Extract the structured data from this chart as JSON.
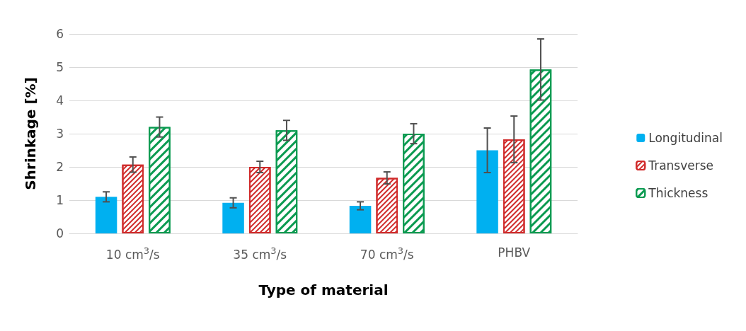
{
  "chart_data": {
    "type": "bar",
    "xlabel": "Type of material",
    "ylabel": "Shrinkage [%]",
    "categories": [
      "10 cm$^{3}$/s",
      "35 cm$^{3}$/s",
      "70 cm$^{3}$/s",
      "PHBV"
    ],
    "series": [
      {
        "name": "Longitudinal",
        "color": "#00b0f0",
        "values": [
          1.1,
          0.92,
          0.83,
          2.5
        ],
        "errors": [
          0.15,
          0.15,
          0.12,
          0.67
        ]
      },
      {
        "name": "Transverse",
        "color": "#d02a2a",
        "values": [
          2.07,
          2.0,
          1.67,
          2.83
        ],
        "errors": [
          0.23,
          0.17,
          0.18,
          0.7
        ]
      },
      {
        "name": "Thickness",
        "color": "#0a9a50",
        "values": [
          3.2,
          3.1,
          3.0,
          4.93
        ],
        "errors": [
          0.3,
          0.3,
          0.3,
          0.92
        ]
      }
    ],
    "ylim": [
      0,
      6
    ],
    "yticks": [
      0,
      1,
      2,
      3,
      4,
      5,
      6
    ],
    "grid": "y",
    "legend": "right"
  }
}
